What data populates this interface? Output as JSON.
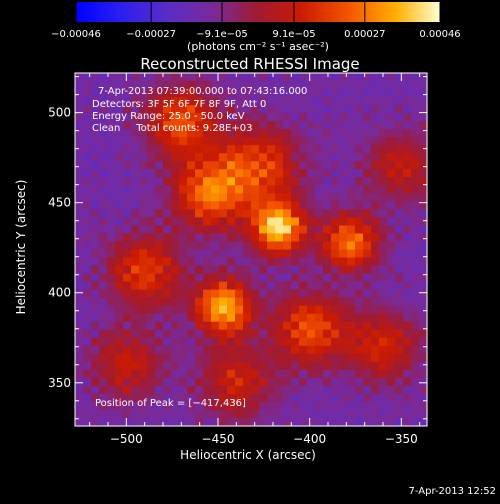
{
  "chart_data": {
    "type": "heatmap",
    "title": "Reconstructed RHESSI Image",
    "xlabel": "Heliocentric X (arcsec)",
    "ylabel": "Heliocentric Y (arcsec)",
    "xlim": [
      -528,
      -336
    ],
    "ylim": [
      326,
      522
    ],
    "x_ticks": [
      -500,
      -450,
      -400,
      -350
    ],
    "y_ticks": [
      350,
      400,
      450,
      500
    ],
    "x_tick_labels": [
      "−500",
      "−450",
      "−400",
      "−350"
    ],
    "y_tick_labels": [
      "350",
      "400",
      "450",
      "500"
    ],
    "colorbar": {
      "range": [
        -0.00046,
        0.00046
      ],
      "tick_values": [
        -0.00046,
        -0.00027,
        -9.1e-05,
        9.1e-05,
        0.00027,
        0.00046
      ],
      "tick_labels": [
        "−0.00046",
        "−0.00027",
        "−9.1e−05",
        "9.1e−05",
        "0.00027",
        "0.00046"
      ],
      "unit_label": "(photons cm⁻² s⁻¹ asec⁻²)"
    },
    "annotations": [
      "7-Apr-2013 07:39:00.000 to 07:43:16.000",
      "Detectors: 3F 5F 6F 7F 8F 9F, Att 0",
      "Energy Range: 25.0 - 50.0 keV",
      "Clean     Total counts: 9.28E+03"
    ],
    "peak_label": "Position of Peak = [−417,436]",
    "peak_position": [
      -417,
      436
    ],
    "peak_value": 0.00046,
    "sources": [
      {
        "x": -417,
        "y": 436,
        "peak": 0.00046,
        "sigma": 10
      },
      {
        "x": -447,
        "y": 392,
        "peak": 0.00042,
        "sigma": 11
      },
      {
        "x": -378,
        "y": 428,
        "peak": 0.00032,
        "sigma": 11
      },
      {
        "x": -455,
        "y": 455,
        "peak": 0.00028,
        "sigma": 14
      },
      {
        "x": -490,
        "y": 412,
        "peak": 0.00022,
        "sigma": 14
      },
      {
        "x": -470,
        "y": 495,
        "peak": 0.00024,
        "sigma": 14
      },
      {
        "x": -428,
        "y": 470,
        "peak": 0.00022,
        "sigma": 16
      },
      {
        "x": -400,
        "y": 380,
        "peak": 0.00024,
        "sigma": 14
      },
      {
        "x": -360,
        "y": 370,
        "peak": 0.00016,
        "sigma": 14
      },
      {
        "x": -500,
        "y": 360,
        "peak": 0.00012,
        "sigma": 14
      },
      {
        "x": -440,
        "y": 350,
        "peak": 0.00014,
        "sigma": 14
      },
      {
        "x": -350,
        "y": 470,
        "peak": 0.0001,
        "sigma": 14
      }
    ],
    "background_level": -0.00014
  },
  "footer": {
    "timestamp": "7-Apr-2013 12:52"
  }
}
